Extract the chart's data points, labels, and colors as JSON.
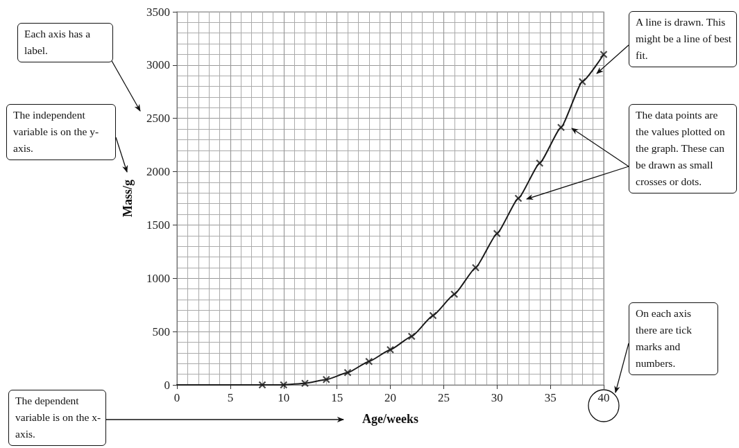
{
  "chart_data": {
    "type": "line",
    "xlabel": "Age/weeks",
    "ylabel": "Mass/g",
    "xlim": [
      0,
      40
    ],
    "xticks": [
      0,
      5,
      10,
      15,
      20,
      25,
      30,
      35,
      40
    ],
    "ylim": [
      0,
      3500
    ],
    "yticks": [
      0,
      500,
      1000,
      1500,
      2000,
      2500,
      3000,
      3500
    ],
    "grid": true,
    "series": [
      {
        "type": "scatter",
        "marker": "cross",
        "color": "#1a1a1a",
        "x": [
          8,
          10,
          12,
          14,
          16,
          18,
          20,
          22,
          24,
          26,
          28,
          30,
          32,
          34,
          36,
          38,
          40
        ],
        "values": [
          0,
          0,
          15,
          50,
          115,
          220,
          330,
          455,
          650,
          850,
          1100,
          1420,
          1750,
          2080,
          2415,
          2845,
          3100
        ]
      },
      {
        "marker": "none",
        "line_style": "solid",
        "color": "#1a1a1a",
        "x": [
          0,
          2,
          4,
          6,
          8,
          10,
          12,
          14,
          16,
          18,
          20,
          22,
          24,
          26,
          28,
          30,
          32,
          34,
          36,
          38,
          40
        ],
        "values": [
          0,
          0,
          0,
          0,
          0,
          0,
          15,
          50,
          115,
          220,
          330,
          455,
          650,
          850,
          1100,
          1420,
          1750,
          2080,
          2415,
          2845,
          3100
        ]
      }
    ],
    "annotations": [
      "Each axis has a label.",
      "The independent variable is on the y-axis.",
      "The dependent variable is on the x-axis.",
      "A line is drawn. This might be a line of best fit.",
      "The data points are the values plotted on the graph. These can be drawn as small crosses or dots.",
      "On each axis there are tick marks and numbers."
    ]
  }
}
